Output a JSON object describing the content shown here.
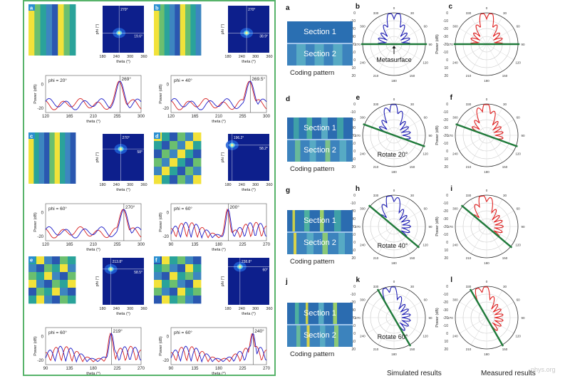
{
  "left_figure": {
    "panels": [
      {
        "letter": "a",
        "phi_label": "phi = 20°",
        "peak_label": "269°",
        "x_ticks": [
          "120",
          "165",
          "210",
          "255",
          "300"
        ],
        "heat_x_ticks": [
          "180",
          "240",
          "300",
          "360"
        ],
        "heat_annot": [
          "270°",
          "19.6°"
        ]
      },
      {
        "letter": "b",
        "phi_label": "phi = 40°",
        "peak_label": "269.5°",
        "x_ticks": [
          "120",
          "165",
          "210",
          "255",
          "300"
        ],
        "heat_x_ticks": [
          "180",
          "240",
          "300",
          "360"
        ],
        "heat_annot": [
          "270°",
          "38.9°"
        ]
      },
      {
        "letter": "c",
        "phi_label": "phi = 60°",
        "peak_label": "270°",
        "x_ticks": [
          "120",
          "165",
          "210",
          "255",
          "300"
        ],
        "heat_x_ticks": [
          "180",
          "240",
          "300",
          "360"
        ],
        "heat_annot": [
          "270°",
          "58°"
        ]
      },
      {
        "letter": "d",
        "phi_label": "phi = 60°",
        "peak_label": "200°",
        "x_ticks": [
          "90",
          "135",
          "180",
          "225",
          "270"
        ],
        "heat_x_ticks": [
          "180",
          "240",
          "300",
          "360"
        ],
        "heat_annot": [
          "196.2°",
          "58.2°"
        ]
      },
      {
        "letter": "e",
        "phi_label": "phi = 60°",
        "peak_label": "219°",
        "x_ticks": [
          "90",
          "135",
          "180",
          "225",
          "270"
        ],
        "heat_x_ticks": [
          "180",
          "240",
          "300",
          "360"
        ],
        "heat_annot": [
          "213.8°",
          "58.5°"
        ]
      },
      {
        "letter": "f",
        "phi_label": "phi = 60°",
        "peak_label": "240°",
        "x_ticks": [
          "90",
          "135",
          "180",
          "225",
          "270"
        ],
        "heat_x_ticks": [
          "180",
          "240",
          "300",
          "360"
        ],
        "heat_annot": [
          "238.8°",
          "60°"
        ]
      }
    ],
    "axis_labels": {
      "power": "Power (dB)",
      "theta": "theta (°)",
      "phi": "phi (°)"
    },
    "y_ticks": [
      "0",
      "-20"
    ]
  },
  "right_figure": {
    "rows": [
      {
        "letters": [
          "a",
          "b",
          "c"
        ],
        "section1": "Section 1",
        "section2": "Section 2",
        "coding_caption": "Coding pattern",
        "annotation": "Metasurface",
        "angle": 0
      },
      {
        "letters": [
          "d",
          "e",
          "f"
        ],
        "section1": "Section 1",
        "section2": "Section 2",
        "coding_caption": "Coding pattern",
        "annotation": "Rotate 20°",
        "angle": 20
      },
      {
        "letters": [
          "g",
          "h",
          "i"
        ],
        "section1": "Section 1",
        "section2": "Section 2",
        "coding_caption": "Coding pattern",
        "annotation": "Rotate 40°",
        "angle": 40
      },
      {
        "letters": [
          "j",
          "k",
          "l"
        ],
        "section1": "Section 1",
        "section2": "Section 2",
        "coding_caption": "Coding pattern",
        "annotation": "Rotate 60°",
        "angle": 60
      }
    ],
    "polar_angle_labels": [
      "0",
      "30",
      "60",
      "90",
      "120",
      "150",
      "180",
      "210",
      "240",
      "270",
      "300",
      "330"
    ],
    "polar_r_ticks": [
      "0",
      "-10",
      "-20",
      "-30",
      "-20",
      "-10",
      "0",
      "10",
      "20"
    ],
    "column_captions": {
      "simulated": "Simulated results",
      "measured": "Measured results"
    },
    "colors": {
      "simulated": "#1f1fb4",
      "measured": "#e02020",
      "surface": "#1f7a3a",
      "border": "#57b36a"
    }
  },
  "watermark": "phys.org"
}
